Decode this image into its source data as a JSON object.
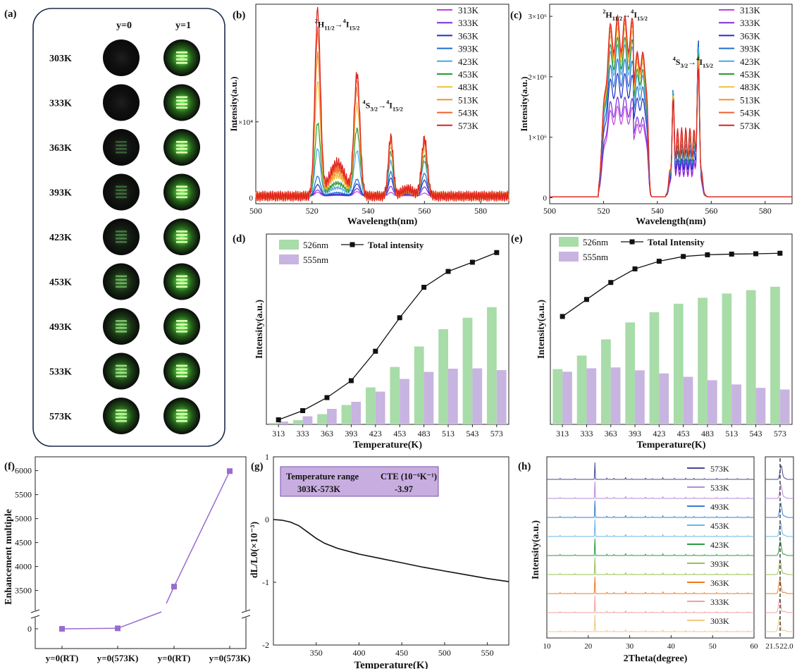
{
  "panel_a": {
    "label": "(a)",
    "col_headers": [
      "y=0",
      "y=1"
    ],
    "rows": [
      {
        "temp": "303K",
        "y0_glow": 0.0,
        "y1_glow": 1.0
      },
      {
        "temp": "333K",
        "y0_glow": 0.0,
        "y1_glow": 1.0
      },
      {
        "temp": "363K",
        "y0_glow": 0.05,
        "y1_glow": 1.0
      },
      {
        "temp": "393K",
        "y0_glow": 0.08,
        "y1_glow": 1.0
      },
      {
        "temp": "423K",
        "y0_glow": 0.15,
        "y1_glow": 1.0
      },
      {
        "temp": "453K",
        "y0_glow": 0.35,
        "y1_glow": 1.0
      },
      {
        "temp": "493K",
        "y0_glow": 0.5,
        "y1_glow": 1.0
      },
      {
        "temp": "533K",
        "y0_glow": 0.65,
        "y1_glow": 1.0
      },
      {
        "temp": "573K",
        "y0_glow": 0.85,
        "y1_glow": 1.0
      }
    ]
  },
  "chart_data": [
    {
      "id": "b",
      "label": "(b)",
      "type": "line",
      "xlabel": "Wavelength(nm)",
      "ylabel": "Intensity(a.u.)",
      "xlim": [
        500,
        590
      ],
      "xticks": [
        500,
        520,
        540,
        560,
        580
      ],
      "ylim": [
        -800,
        25500
      ],
      "yticks": [
        {
          "v": 0,
          "t": "0"
        },
        {
          "v": 10000,
          "t": "1×10⁴"
        }
      ],
      "annotations": [
        {
          "main": "2H",
          "sub1": "11/2",
          "arrow": "→4I",
          "sub2": "15/2",
          "x": 528,
          "y": 22500
        },
        {
          "main": "4S",
          "sub1": "3/2",
          "arrow": "→4I",
          "sub2": "15/2",
          "x": 545,
          "y": 11800
        }
      ],
      "legend": [
        "313K",
        "333K",
        "363K",
        "393K",
        "423K",
        "453K",
        "483K",
        "513K",
        "543K",
        "573K"
      ],
      "colors": [
        "#c040e0",
        "#7a2ed8",
        "#2030c8",
        "#1c6fd0",
        "#48a8e0",
        "#2a9a30",
        "#f0c040",
        "#f09030",
        "#f06030",
        "#e02020"
      ],
      "peaks": [
        [
          522,
          1.4
        ],
        [
          536,
          1.5
        ],
        [
          548,
          1.2
        ],
        [
          560,
          1.4
        ]
      ],
      "series_peaks": [
        [
          500,
          600,
          500,
          400
        ],
        [
          800,
          1000,
          1300,
          1200
        ],
        [
          1500,
          1600,
          2400,
          2100
        ],
        [
          2600,
          2200,
          3200,
          3000
        ],
        [
          6200,
          5900,
          4600,
          4600
        ],
        [
          9600,
          8800,
          5800,
          5400
        ],
        [
          15000,
          11800,
          6600,
          6200
        ],
        [
          18500,
          14000,
          7400,
          7000
        ],
        [
          21500,
          15200,
          7700,
          7400
        ],
        [
          24500,
          16000,
          7800,
          7600
        ]
      ],
      "baseline": 200
    },
    {
      "id": "c",
      "label": "(c)",
      "type": "line",
      "xlabel": "Wavelength(nm)",
      "ylabel": "Intensity(a.u.)",
      "xlim": [
        500,
        590
      ],
      "xticks": [
        500,
        520,
        540,
        560,
        580
      ],
      "ylim": [
        -100000,
        3200000
      ],
      "yticks": [
        {
          "v": 0,
          "t": "0"
        },
        {
          "v": 1000000,
          "t": "1×10⁶"
        },
        {
          "v": 2000000,
          "t": "2×10⁶"
        },
        {
          "v": 3000000,
          "t": "3×10⁶"
        }
      ],
      "annotations": [
        {
          "main": "2H",
          "sub1": "11/2",
          "arrow": "→4I",
          "sub2": "15/2",
          "x": 527,
          "y": 2980000
        },
        {
          "main": "4S",
          "sub1": "3/2",
          "arrow": "→4I",
          "sub2": "15/2",
          "x": 553,
          "y": 2200000
        }
      ],
      "legend": [
        "313K",
        "333K",
        "363K",
        "393K",
        "423K",
        "453K",
        "483K",
        "513K",
        "543K",
        "573K"
      ],
      "colors": [
        "#c040e0",
        "#7a2ed8",
        "#2030c8",
        "#1c6fd0",
        "#48a8e0",
        "#2a9a30",
        "#f0c040",
        "#f09030",
        "#f06030",
        "#e02020"
      ],
      "series_scale": [
        0.5,
        0.55,
        0.68,
        0.76,
        0.84,
        0.88,
        0.93,
        0.96,
        0.98,
        1.0
      ],
      "n555": [
        2150000,
        2100000,
        2000000,
        1900000,
        1750000,
        1600000,
        1500000,
        1400000,
        1300000,
        1250000
      ]
    },
    {
      "id": "d",
      "label": "(d)",
      "type": "bar",
      "xlabel": "Temperature(K)",
      "ylabel": "Intensity(a.u.)",
      "categories": [
        "313",
        "333",
        "363",
        "393",
        "423",
        "453",
        "483",
        "513",
        "543",
        "573"
      ],
      "series": [
        {
          "name": "526nm",
          "values": [
            0.8,
            2.4,
            5.8,
            11.0,
            21.0,
            32.6,
            44.2,
            54.0,
            60.5,
            66.5
          ],
          "color": "#a8dca8"
        },
        {
          "name": "555nm",
          "values": [
            1.6,
            4.6,
            8.8,
            12.8,
            18.6,
            25.8,
            29.8,
            31.6,
            31.8,
            30.8
          ],
          "color": "#c8b4e0"
        }
      ],
      "line": {
        "name": "Total intensity",
        "values": [
          2.6,
          7.8,
          15.2,
          24.8,
          41.5,
          60.5,
          77.8,
          86.8,
          92.0,
          97.5
        ]
      },
      "ylim": [
        0,
        108
      ]
    },
    {
      "id": "e",
      "label": "(e)",
      "type": "bar",
      "xlabel": "Temperature(K)",
      "ylabel": "Intensity(a.u.)",
      "categories": [
        "313",
        "333",
        "363",
        "393",
        "423",
        "453",
        "483",
        "513",
        "543",
        "573"
      ],
      "series": [
        {
          "name": "526nm",
          "values": [
            32.5,
            40.5,
            50.0,
            60.0,
            66.0,
            71.0,
            74.5,
            77.0,
            79.0,
            81.0
          ],
          "color": "#a8dca8"
        },
        {
          "name": "555nm",
          "values": [
            31.0,
            33.0,
            33.5,
            31.8,
            30.0,
            28.0,
            26.0,
            23.5,
            21.5,
            20.5
          ],
          "color": "#c8b4e0"
        }
      ],
      "line": {
        "name": "Total Intensity",
        "values": [
          63.5,
          73.5,
          83.5,
          91.5,
          96.0,
          98.8,
          99.8,
          100.2,
          100.4,
          100.7
        ]
      },
      "ylim": [
        0,
        112
      ]
    },
    {
      "id": "f",
      "label": "(f)",
      "type": "line",
      "ylabel": "Enhancement multiple",
      "categories": [
        "y=0(RT)",
        "y=0(573K)",
        "y=0(RT)",
        "y=0(573K)"
      ],
      "values": [
        1,
        35,
        3580,
        5990
      ],
      "yticks": [
        0,
        3500,
        4000,
        4500,
        5000,
        5500,
        6000
      ],
      "color": "#9a6cd0"
    },
    {
      "id": "g",
      "label": "(g)",
      "type": "line",
      "xlabel": "Temperature(K)",
      "ylabel": "dL/L0(×10⁻³)",
      "xlim": [
        300,
        575
      ],
      "xticks": [
        350,
        400,
        450,
        500,
        550
      ],
      "ylim": [
        -2,
        1
      ],
      "yticks": [
        1,
        0,
        -1,
        -2
      ],
      "table": {
        "h1": "Temperature range",
        "h2": "CTE (10⁻⁶K⁻¹)",
        "r1": "303K-573K",
        "r2": "-3.97"
      },
      "points": [
        [
          300,
          0
        ],
        [
          310,
          -0.01
        ],
        [
          320,
          -0.04
        ],
        [
          330,
          -0.1
        ],
        [
          340,
          -0.2
        ],
        [
          350,
          -0.3
        ],
        [
          360,
          -0.38
        ],
        [
          375,
          -0.46
        ],
        [
          400,
          -0.55
        ],
        [
          425,
          -0.62
        ],
        [
          450,
          -0.69
        ],
        [
          475,
          -0.76
        ],
        [
          500,
          -0.82
        ],
        [
          525,
          -0.88
        ],
        [
          550,
          -0.94
        ],
        [
          575,
          -0.99
        ]
      ]
    },
    {
      "id": "h",
      "label": "(h)",
      "type": "line",
      "xlabel": "2Theta(degree)",
      "ylabel": "Intensity(a.u.)",
      "xlim": [
        10,
        60
      ],
      "xticks": [
        10,
        20,
        30,
        40,
        50,
        60
      ],
      "inset_ticks": [
        "21.5",
        "22.0"
      ],
      "legend": [
        "573K",
        "533K",
        "493K",
        "453K",
        "423K",
        "393K",
        "363K",
        "333K",
        "303K"
      ],
      "colors": [
        "#484890",
        "#b888d8",
        "#3a7cd0",
        "#6ab4e8",
        "#2a9a40",
        "#98c050",
        "#f07820",
        "#f0a0a0",
        "#f0c880"
      ],
      "peaks": [
        [
          21.6,
          1.0
        ],
        [
          13.2,
          0.06
        ],
        [
          16.8,
          0.05
        ],
        [
          24.5,
          0.08
        ],
        [
          26.2,
          0.07
        ],
        [
          29.0,
          0.12
        ],
        [
          30.5,
          0.05
        ],
        [
          33.8,
          0.08
        ],
        [
          35.5,
          0.05
        ],
        [
          38.0,
          0.09
        ],
        [
          40.8,
          0.06
        ],
        [
          43.5,
          0.07
        ],
        [
          45.5,
          0.06
        ],
        [
          48.0,
          0.05
        ],
        [
          51.0,
          0.06
        ],
        [
          53.5,
          0.05
        ],
        [
          56.0,
          0.05
        ],
        [
          58.5,
          0.05
        ]
      ]
    }
  ]
}
